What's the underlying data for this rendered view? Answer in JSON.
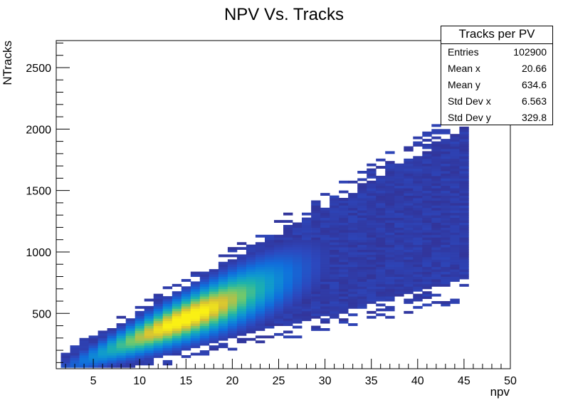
{
  "chart_data": {
    "type": "heatmap",
    "title": "NPV Vs. Tracks",
    "xlabel": "npv",
    "ylabel": "NTracks",
    "xlim": [
      1,
      50
    ],
    "ylim": [
      50,
      2720
    ],
    "xticks": [
      "5",
      "10",
      "15",
      "20",
      "25",
      "30",
      "35",
      "40",
      "45",
      "50"
    ],
    "yticks": [
      "500",
      "1000",
      "1500",
      "2000",
      "2500"
    ],
    "grid": false,
    "palette": "kBird",
    "mean_relation": "NTracks rises roughly linearly with npv, ~31 tracks per vertex",
    "density_peak": {
      "npv": 15,
      "ntracks": 380
    },
    "stats": {
      "name": "Tracks per PV",
      "entries": {
        "label": "Entries",
        "value": "102900"
      },
      "mean_x": {
        "label": "Mean x",
        "value": "20.66"
      },
      "mean_y": {
        "label": "Mean y",
        "value": "634.6"
      },
      "stddev_x": {
        "label": "Std Dev x",
        "value": "6.563"
      },
      "stddev_y": {
        "label": "Std Dev y",
        "value": "329.8"
      }
    }
  }
}
